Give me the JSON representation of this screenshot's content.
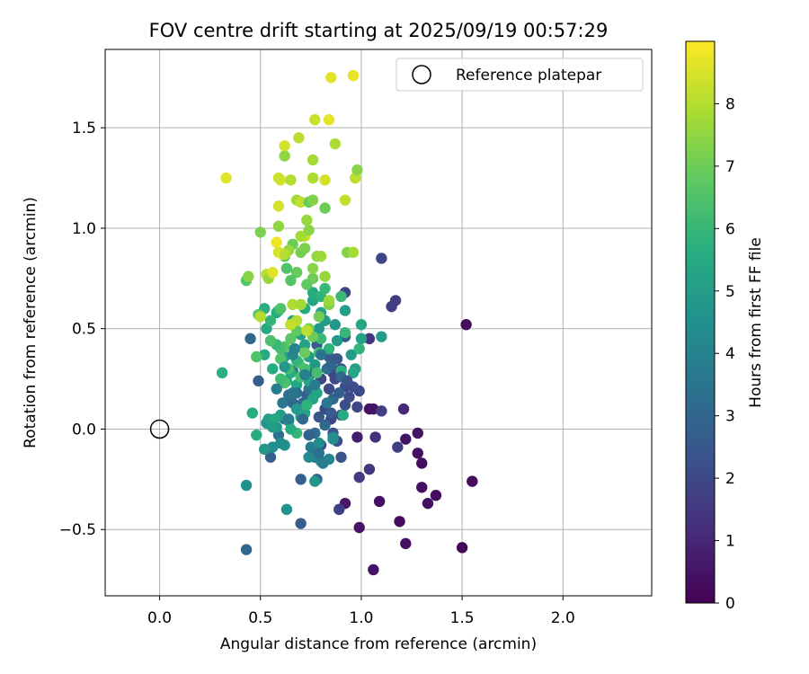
{
  "chart_data": {
    "type": "scatter",
    "title": "FOV centre drift starting at 2025/09/19 00:57:29",
    "xlabel": "Angular distance from reference (arcmin)",
    "ylabel": "Rotation from reference (arcmin)",
    "xlim": [
      -0.27,
      2.44
    ],
    "ylim": [
      -0.83,
      1.89
    ],
    "xticks": [
      "0.0",
      "0.5",
      "1.0",
      "1.5",
      "2.0"
    ],
    "xtick_values": [
      0,
      0.5,
      1.0,
      1.5,
      2.0
    ],
    "yticks": [
      "−0.5",
      "0.0",
      "0.5",
      "1.0",
      "1.5"
    ],
    "ytick_values": [
      -0.5,
      0,
      0.5,
      1.0,
      1.5
    ],
    "grid": true,
    "legend": {
      "label": "Reference platepar",
      "placement": "top-right"
    },
    "reference_point": {
      "x": 0.0,
      "y": 0.0
    },
    "colorbar": {
      "label": "Hours from first FF file",
      "ticks": [
        "0",
        "1",
        "2",
        "3",
        "4",
        "5",
        "6",
        "7",
        "8"
      ],
      "range": [
        0,
        9
      ],
      "colormap": "viridis",
      "stops": [
        "#440154",
        "#472c7a",
        "#3b518b",
        "#2c718e",
        "#21908d",
        "#27ad81",
        "#5cc863",
        "#aadc32",
        "#fde725"
      ]
    },
    "points": [
      {
        "x": 1.52,
        "y": 0.52,
        "h": 0.3
      },
      {
        "x": 1.55,
        "y": -0.26,
        "h": 0.3
      },
      {
        "x": 1.5,
        "y": -0.59,
        "h": 0.2
      },
      {
        "x": 1.37,
        "y": -0.33,
        "h": 0.3
      },
      {
        "x": 1.33,
        "y": -0.37,
        "h": 0.4
      },
      {
        "x": 1.3,
        "y": -0.29,
        "h": 0.4
      },
      {
        "x": 1.28,
        "y": -0.12,
        "h": 0.4
      },
      {
        "x": 1.3,
        "y": -0.17,
        "h": 0.3
      },
      {
        "x": 1.28,
        "y": -0.02,
        "h": 0.5
      },
      {
        "x": 1.22,
        "y": -0.05,
        "h": 0.5
      },
      {
        "x": 1.22,
        "y": -0.57,
        "h": 0.4
      },
      {
        "x": 1.19,
        "y": -0.46,
        "h": 0.3
      },
      {
        "x": 1.09,
        "y": -0.36,
        "h": 0.4
      },
      {
        "x": 1.06,
        "y": -0.7,
        "h": 0.5
      },
      {
        "x": 0.99,
        "y": -0.49,
        "h": 0.5
      },
      {
        "x": 0.92,
        "y": -0.37,
        "h": 0.6
      },
      {
        "x": 1.04,
        "y": 0.1,
        "h": 0.4
      },
      {
        "x": 1.21,
        "y": 0.1,
        "h": 1.0
      },
      {
        "x": 1.06,
        "y": 0.1,
        "h": 0.5
      },
      {
        "x": 0.98,
        "y": -0.04,
        "h": 0.7
      },
      {
        "x": 1.07,
        "y": -0.04,
        "h": 1.3
      },
      {
        "x": 1.18,
        "y": -0.09,
        "h": 1.7
      },
      {
        "x": 1.04,
        "y": -0.2,
        "h": 1.5
      },
      {
        "x": 0.99,
        "y": -0.24,
        "h": 1.6
      },
      {
        "x": 0.89,
        "y": -0.4,
        "h": 1.7
      },
      {
        "x": 1.1,
        "y": 0.09,
        "h": 1.7
      },
      {
        "x": 1.04,
        "y": 0.45,
        "h": 1.5
      },
      {
        "x": 1.1,
        "y": 0.85,
        "h": 1.9
      },
      {
        "x": 1.17,
        "y": 0.64,
        "h": 1.6
      },
      {
        "x": 1.15,
        "y": 0.61,
        "h": 1.7
      },
      {
        "x": 0.92,
        "y": 0.68,
        "h": 1.9
      },
      {
        "x": 0.98,
        "y": 0.11,
        "h": 1.9
      },
      {
        "x": 0.99,
        "y": 0.19,
        "h": 2.0
      },
      {
        "x": 0.94,
        "y": 0.16,
        "h": 2.1
      },
      {
        "x": 0.92,
        "y": 0.21,
        "h": 2.1
      },
      {
        "x": 0.9,
        "y": 0.07,
        "h": 2.0
      },
      {
        "x": 0.85,
        "y": 0.05,
        "h": 1.9
      },
      {
        "x": 0.82,
        "y": 0.1,
        "h": 2.1
      },
      {
        "x": 0.86,
        "y": -0.02,
        "h": 2.3
      },
      {
        "x": 0.88,
        "y": -0.06,
        "h": 2.2
      },
      {
        "x": 0.9,
        "y": -0.14,
        "h": 2.4
      },
      {
        "x": 0.8,
        "y": -0.08,
        "h": 2.0
      },
      {
        "x": 0.79,
        "y": 0.06,
        "h": 2.4
      },
      {
        "x": 0.86,
        "y": 0.28,
        "h": 1.8
      },
      {
        "x": 0.87,
        "y": 0.25,
        "h": 1.9
      },
      {
        "x": 0.84,
        "y": 0.2,
        "h": 2.0
      },
      {
        "x": 0.9,
        "y": 0.3,
        "h": 2.1
      },
      {
        "x": 0.8,
        "y": 0.25,
        "h": 1.9
      },
      {
        "x": 0.84,
        "y": 0.36,
        "h": 2.6
      },
      {
        "x": 0.92,
        "y": 0.46,
        "h": 2.6
      },
      {
        "x": 0.78,
        "y": 0.42,
        "h": 2.6
      },
      {
        "x": 0.76,
        "y": 0.28,
        "h": 2.8
      },
      {
        "x": 0.76,
        "y": 0.2,
        "h": 2.8
      },
      {
        "x": 0.73,
        "y": 0.17,
        "h": 2.8
      },
      {
        "x": 0.71,
        "y": 0.13,
        "h": 3.1
      },
      {
        "x": 0.68,
        "y": 0.1,
        "h": 3.0
      },
      {
        "x": 0.66,
        "y": 0.13,
        "h": 3.0
      },
      {
        "x": 0.7,
        "y": -0.25,
        "h": 2.8
      },
      {
        "x": 0.78,
        "y": -0.25,
        "h": 2.8
      },
      {
        "x": 0.7,
        "y": -0.47,
        "h": 2.7
      },
      {
        "x": 0.43,
        "y": -0.6,
        "h": 3.0
      },
      {
        "x": 0.49,
        "y": 0.24,
        "h": 2.7
      },
      {
        "x": 0.45,
        "y": 0.45,
        "h": 3.0
      },
      {
        "x": 0.55,
        "y": -0.14,
        "h": 2.8
      },
      {
        "x": 0.59,
        "y": -0.03,
        "h": 3.3
      },
      {
        "x": 0.62,
        "y": 0.05,
        "h": 3.4
      },
      {
        "x": 0.64,
        "y": 0.17,
        "h": 3.4
      },
      {
        "x": 0.66,
        "y": 0.29,
        "h": 3.4
      },
      {
        "x": 0.74,
        "y": 0.2,
        "h": 3.6
      },
      {
        "x": 0.75,
        "y": -0.09,
        "h": 3.7
      },
      {
        "x": 0.77,
        "y": -0.14,
        "h": 3.7
      },
      {
        "x": 0.8,
        "y": -0.16,
        "h": 4.0
      },
      {
        "x": 0.84,
        "y": -0.15,
        "h": 4.1
      },
      {
        "x": 0.86,
        "y": -0.04,
        "h": 4.2
      },
      {
        "x": 0.79,
        "y": -0.07,
        "h": 4.4
      },
      {
        "x": 0.63,
        "y": -0.4,
        "h": 4.6
      },
      {
        "x": 0.43,
        "y": -0.28,
        "h": 4.6
      },
      {
        "x": 0.77,
        "y": -0.26,
        "h": 4.8
      },
      {
        "x": 0.62,
        "y": -0.08,
        "h": 4.6
      },
      {
        "x": 0.6,
        "y": -0.07,
        "h": 4.4
      },
      {
        "x": 0.56,
        "y": -0.09,
        "h": 4.5
      },
      {
        "x": 0.52,
        "y": -0.1,
        "h": 4.8
      },
      {
        "x": 0.58,
        "y": 0.01,
        "h": 4.9
      },
      {
        "x": 0.55,
        "y": 0.04,
        "h": 4.5
      },
      {
        "x": 0.53,
        "y": 0.03,
        "h": 4.7
      },
      {
        "x": 0.54,
        "y": 0.05,
        "h": 5.0
      },
      {
        "x": 0.64,
        "y": 0.04,
        "h": 4.9
      },
      {
        "x": 0.6,
        "y": 0.07,
        "h": 5.0
      },
      {
        "x": 0.68,
        "y": 0.1,
        "h": 4.9
      },
      {
        "x": 0.7,
        "y": 0.06,
        "h": 5.0
      },
      {
        "x": 0.72,
        "y": 0.08,
        "h": 5.2
      },
      {
        "x": 0.76,
        "y": 0.15,
        "h": 5.2
      },
      {
        "x": 0.78,
        "y": 0.18,
        "h": 5.3
      },
      {
        "x": 0.74,
        "y": 0.24,
        "h": 5.3
      },
      {
        "x": 0.68,
        "y": 0.22,
        "h": 5.4
      },
      {
        "x": 0.63,
        "y": 0.24,
        "h": 5.6
      },
      {
        "x": 0.65,
        "y": 0.28,
        "h": 5.5
      },
      {
        "x": 0.62,
        "y": 0.36,
        "h": 5.4
      },
      {
        "x": 0.56,
        "y": 0.3,
        "h": 5.6
      },
      {
        "x": 0.52,
        "y": 0.37,
        "h": 5.5
      },
      {
        "x": 0.53,
        "y": 0.5,
        "h": 5.5
      },
      {
        "x": 0.52,
        "y": 0.6,
        "h": 5.7
      },
      {
        "x": 0.58,
        "y": 0.58,
        "h": 5.6
      },
      {
        "x": 0.59,
        "y": 0.59,
        "h": 5.8
      },
      {
        "x": 0.66,
        "y": 0.54,
        "h": 5.3
      },
      {
        "x": 0.7,
        "y": 0.47,
        "h": 5.1
      },
      {
        "x": 0.72,
        "y": 0.42,
        "h": 5.2
      },
      {
        "x": 0.74,
        "y": 0.36,
        "h": 5.0
      },
      {
        "x": 0.77,
        "y": 0.32,
        "h": 4.8
      },
      {
        "x": 0.79,
        "y": 0.5,
        "h": 4.8
      },
      {
        "x": 0.82,
        "y": 0.54,
        "h": 5.0
      },
      {
        "x": 0.8,
        "y": 0.58,
        "h": 5.2
      },
      {
        "x": 0.76,
        "y": 0.64,
        "h": 5.3
      },
      {
        "x": 0.72,
        "y": 0.6,
        "h": 5.5
      },
      {
        "x": 0.76,
        "y": 0.68,
        "h": 5.6
      },
      {
        "x": 0.8,
        "y": 0.66,
        "h": 5.8
      },
      {
        "x": 0.82,
        "y": 0.7,
        "h": 6.0
      },
      {
        "x": 0.9,
        "y": 0.66,
        "h": 6.1
      },
      {
        "x": 0.92,
        "y": 0.59,
        "h": 5.0
      },
      {
        "x": 0.87,
        "y": 0.52,
        "h": 4.8
      },
      {
        "x": 0.88,
        "y": 0.44,
        "h": 4.9
      },
      {
        "x": 0.95,
        "y": 0.37,
        "h": 5.0
      },
      {
        "x": 0.97,
        "y": 0.3,
        "h": 5.1
      },
      {
        "x": 1.0,
        "y": 0.45,
        "h": 5.2
      },
      {
        "x": 1.0,
        "y": 0.52,
        "h": 5.4
      },
      {
        "x": 1.1,
        "y": 0.46,
        "h": 5.0
      },
      {
        "x": 0.96,
        "y": 0.28,
        "h": 5.4
      },
      {
        "x": 0.91,
        "y": 0.07,
        "h": 5.5
      },
      {
        "x": 0.9,
        "y": 0.29,
        "h": 5.7
      },
      {
        "x": 0.84,
        "y": 0.4,
        "h": 5.8
      },
      {
        "x": 0.99,
        "y": 0.4,
        "h": 5.9
      },
      {
        "x": 0.92,
        "y": 0.48,
        "h": 6.0
      },
      {
        "x": 0.8,
        "y": 0.45,
        "h": 6.1
      },
      {
        "x": 0.79,
        "y": 0.38,
        "h": 6.2
      },
      {
        "x": 0.78,
        "y": 0.28,
        "h": 6.3
      },
      {
        "x": 0.72,
        "y": 0.3,
        "h": 6.3
      },
      {
        "x": 0.69,
        "y": 0.33,
        "h": 6.4
      },
      {
        "x": 0.64,
        "y": 0.3,
        "h": 6.3
      },
      {
        "x": 0.62,
        "y": 0.23,
        "h": 6.4
      },
      {
        "x": 0.6,
        "y": 0.35,
        "h": 6.5
      },
      {
        "x": 0.62,
        "y": 0.41,
        "h": 6.6
      },
      {
        "x": 0.65,
        "y": 0.45,
        "h": 6.7
      },
      {
        "x": 0.68,
        "y": 0.49,
        "h": 6.8
      },
      {
        "x": 0.72,
        "y": 0.38,
        "h": 6.9
      },
      {
        "x": 0.76,
        "y": 0.46,
        "h": 7.0
      },
      {
        "x": 0.74,
        "y": 0.5,
        "h": 7.1
      },
      {
        "x": 0.79,
        "y": 0.56,
        "h": 7.1
      },
      {
        "x": 0.84,
        "y": 0.62,
        "h": 7.3
      },
      {
        "x": 0.76,
        "y": 0.75,
        "h": 7.0
      },
      {
        "x": 0.73,
        "y": 0.72,
        "h": 6.8
      },
      {
        "x": 0.68,
        "y": 0.78,
        "h": 6.9
      },
      {
        "x": 0.65,
        "y": 0.74,
        "h": 6.6
      },
      {
        "x": 0.63,
        "y": 0.8,
        "h": 6.5
      },
      {
        "x": 0.62,
        "y": 0.86,
        "h": 6.6
      },
      {
        "x": 0.66,
        "y": 0.92,
        "h": 7.0
      },
      {
        "x": 0.7,
        "y": 0.88,
        "h": 7.1
      },
      {
        "x": 0.72,
        "y": 0.9,
        "h": 7.2
      },
      {
        "x": 0.76,
        "y": 0.8,
        "h": 7.4
      },
      {
        "x": 0.78,
        "y": 0.86,
        "h": 7.5
      },
      {
        "x": 0.82,
        "y": 0.76,
        "h": 7.6
      },
      {
        "x": 0.84,
        "y": 0.64,
        "h": 7.7
      },
      {
        "x": 0.7,
        "y": 0.62,
        "h": 7.8
      },
      {
        "x": 0.66,
        "y": 0.62,
        "h": 7.9
      },
      {
        "x": 0.68,
        "y": 0.54,
        "h": 8.0
      },
      {
        "x": 0.73,
        "y": 0.49,
        "h": 8.1
      },
      {
        "x": 0.65,
        "y": 0.52,
        "h": 8.2
      },
      {
        "x": 0.6,
        "y": 0.4,
        "h": 6.3
      },
      {
        "x": 0.58,
        "y": 0.42,
        "h": 6.1
      },
      {
        "x": 0.55,
        "y": 0.44,
        "h": 6.4
      },
      {
        "x": 0.49,
        "y": 0.57,
        "h": 6.6
      },
      {
        "x": 0.48,
        "y": 0.36,
        "h": 6.5
      },
      {
        "x": 0.43,
        "y": 0.74,
        "h": 6.6
      },
      {
        "x": 0.44,
        "y": 0.76,
        "h": 7.4
      },
      {
        "x": 0.46,
        "y": 0.08,
        "h": 5.6
      },
      {
        "x": 0.48,
        "y": -0.03,
        "h": 5.5
      },
      {
        "x": 0.5,
        "y": 0.56,
        "h": 8.0
      },
      {
        "x": 0.31,
        "y": 0.28,
        "h": 5.7
      },
      {
        "x": 0.33,
        "y": 1.25,
        "h": 8.6
      },
      {
        "x": 0.5,
        "y": 0.98,
        "h": 7.2
      },
      {
        "x": 0.53,
        "y": 0.77,
        "h": 8.1
      },
      {
        "x": 0.54,
        "y": 0.75,
        "h": 7.6
      },
      {
        "x": 0.56,
        "y": 0.78,
        "h": 8.6
      },
      {
        "x": 0.59,
        "y": 0.88,
        "h": 8.4
      },
      {
        "x": 0.58,
        "y": 0.93,
        "h": 8.8
      },
      {
        "x": 0.61,
        "y": 0.87,
        "h": 8.7
      },
      {
        "x": 0.59,
        "y": 1.01,
        "h": 7.5
      },
      {
        "x": 0.59,
        "y": 1.11,
        "h": 8.4
      },
      {
        "x": 0.6,
        "y": 1.24,
        "h": 8.5
      },
      {
        "x": 0.59,
        "y": 1.25,
        "h": 8.3
      },
      {
        "x": 0.62,
        "y": 1.36,
        "h": 7.5
      },
      {
        "x": 0.62,
        "y": 1.41,
        "h": 8.4
      },
      {
        "x": 0.65,
        "y": 1.24,
        "h": 8.0
      },
      {
        "x": 0.68,
        "y": 1.14,
        "h": 7.7
      },
      {
        "x": 0.7,
        "y": 1.13,
        "h": 8.2
      },
      {
        "x": 0.69,
        "y": 1.45,
        "h": 8.1
      },
      {
        "x": 0.72,
        "y": 0.96,
        "h": 8.3
      },
      {
        "x": 0.73,
        "y": 1.04,
        "h": 7.6
      },
      {
        "x": 0.74,
        "y": 0.99,
        "h": 7.4
      },
      {
        "x": 0.74,
        "y": 1.13,
        "h": 6.9
      },
      {
        "x": 0.76,
        "y": 1.14,
        "h": 7.3
      },
      {
        "x": 0.76,
        "y": 1.25,
        "h": 7.9
      },
      {
        "x": 0.76,
        "y": 1.34,
        "h": 7.8
      },
      {
        "x": 0.77,
        "y": 1.54,
        "h": 8.3
      },
      {
        "x": 0.8,
        "y": 0.86,
        "h": 7.7
      },
      {
        "x": 0.82,
        "y": 1.24,
        "h": 8.4
      },
      {
        "x": 0.82,
        "y": 1.1,
        "h": 7.0
      },
      {
        "x": 0.84,
        "y": 1.54,
        "h": 8.7
      },
      {
        "x": 0.85,
        "y": 1.75,
        "h": 8.6
      },
      {
        "x": 0.87,
        "y": 1.42,
        "h": 7.9
      },
      {
        "x": 0.92,
        "y": 1.14,
        "h": 8.2
      },
      {
        "x": 0.93,
        "y": 0.88,
        "h": 7.3
      },
      {
        "x": 0.96,
        "y": 0.88,
        "h": 7.8
      },
      {
        "x": 0.97,
        "y": 1.25,
        "h": 8.1
      },
      {
        "x": 0.98,
        "y": 1.29,
        "h": 7.4
      },
      {
        "x": 0.96,
        "y": 1.76,
        "h": 8.7
      },
      {
        "x": 0.7,
        "y": 0.96,
        "h": 7.8
      },
      {
        "x": 0.64,
        "y": 0.89,
        "h": 7.6
      },
      {
        "x": 0.62,
        "y": 0.87,
        "h": 8.0
      },
      {
        "x": 0.6,
        "y": 0.6,
        "h": 6.5
      },
      {
        "x": 0.55,
        "y": 0.54,
        "h": 5.9
      },
      {
        "x": 0.68,
        "y": 0.34,
        "h": 5.9
      },
      {
        "x": 0.6,
        "y": 0.25,
        "h": 6.2
      },
      {
        "x": 0.7,
        "y": 0.26,
        "h": 6.3
      },
      {
        "x": 0.73,
        "y": 0.12,
        "h": 5.8
      },
      {
        "x": 0.68,
        "y": -0.02,
        "h": 6.0
      },
      {
        "x": 0.65,
        "y": 0.0,
        "h": 5.6
      },
      {
        "x": 0.57,
        "y": 0.05,
        "h": 5.4
      },
      {
        "x": 0.56,
        "y": 0.01,
        "h": 5.0
      },
      {
        "x": 0.62,
        "y": 0.31,
        "h": 4.8
      },
      {
        "x": 0.66,
        "y": 0.37,
        "h": 4.2
      },
      {
        "x": 0.67,
        "y": 0.4,
        "h": 4.1
      },
      {
        "x": 0.72,
        "y": 0.27,
        "h": 3.9
      },
      {
        "x": 0.77,
        "y": 0.22,
        "h": 3.8
      },
      {
        "x": 0.8,
        "y": 0.37,
        "h": 3.5
      },
      {
        "x": 0.83,
        "y": 0.3,
        "h": 3.3
      },
      {
        "x": 0.85,
        "y": 0.32,
        "h": 3.0
      },
      {
        "x": 0.88,
        "y": 0.35,
        "h": 2.5
      },
      {
        "x": 0.86,
        "y": 0.15,
        "h": 3.2
      },
      {
        "x": 0.83,
        "y": 0.13,
        "h": 3.6
      },
      {
        "x": 0.77,
        "y": -0.02,
        "h": 3.3
      },
      {
        "x": 0.74,
        "y": -0.03,
        "h": 2.9
      },
      {
        "x": 0.71,
        "y": 0.05,
        "h": 3.1
      },
      {
        "x": 0.68,
        "y": 0.18,
        "h": 3.2
      },
      {
        "x": 0.66,
        "y": 0.18,
        "h": 3.5
      },
      {
        "x": 0.64,
        "y": 0.05,
        "h": 3.8
      },
      {
        "x": 0.61,
        "y": 0.13,
        "h": 3.6
      },
      {
        "x": 0.58,
        "y": 0.2,
        "h": 3.9
      },
      {
        "x": 0.9,
        "y": 0.26,
        "h": 3.1
      },
      {
        "x": 0.93,
        "y": 0.24,
        "h": 2.4
      },
      {
        "x": 0.96,
        "y": 0.21,
        "h": 2.2
      },
      {
        "x": 0.92,
        "y": 0.12,
        "h": 2.2
      },
      {
        "x": 0.89,
        "y": 0.18,
        "h": 2.7
      },
      {
        "x": 0.85,
        "y": 0.08,
        "h": 2.6
      },
      {
        "x": 0.82,
        "y": 0.02,
        "h": 3.0
      },
      {
        "x": 0.79,
        "y": -0.12,
        "h": 3.4
      },
      {
        "x": 0.81,
        "y": -0.17,
        "h": 3.9
      },
      {
        "x": 0.74,
        "y": -0.14,
        "h": 4.3
      },
      {
        "x": 0.86,
        "y": -0.05,
        "h": 4.5
      }
    ]
  }
}
